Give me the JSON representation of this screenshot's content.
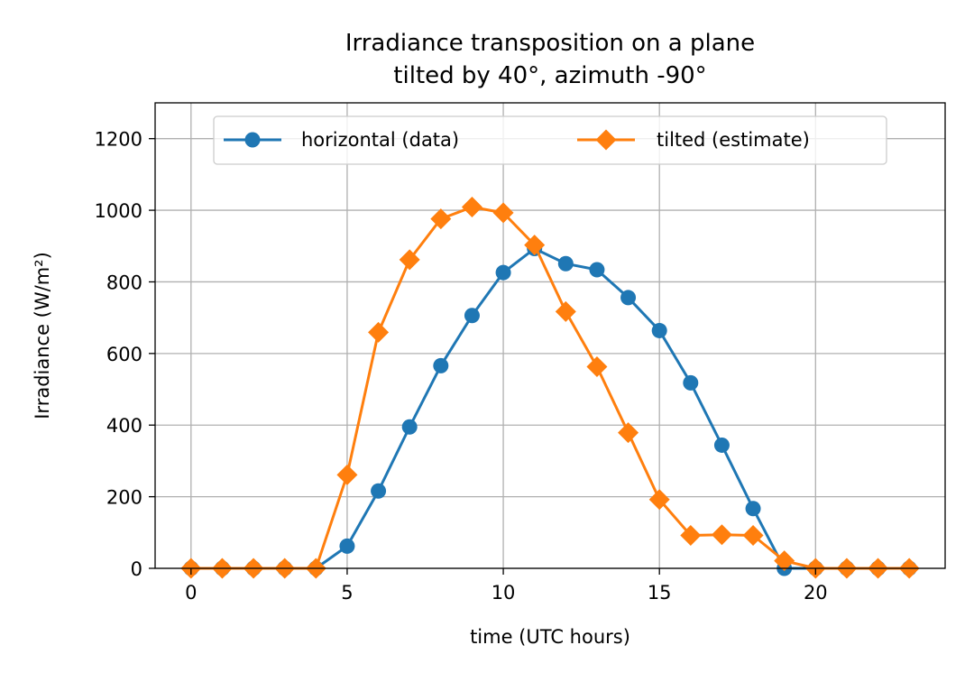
{
  "chart_data": {
    "type": "line",
    "title": "Irradiance transposition on a plane\ntilted by 40°, azimuth -90°",
    "xlabel": "time (UTC hours)",
    "ylabel": "Irradiance (W/m²)",
    "xlim": [
      -1.15,
      24.15
    ],
    "ylim": [
      0,
      1300
    ],
    "xticks": [
      0,
      5,
      10,
      15,
      20
    ],
    "yticks": [
      0,
      200,
      400,
      600,
      800,
      1000,
      1200
    ],
    "grid": true,
    "legend_position": "upper-center",
    "x": [
      0,
      1,
      2,
      3,
      4,
      5,
      6,
      7,
      8,
      9,
      10,
      11,
      12,
      13,
      14,
      15,
      16,
      17,
      18,
      19,
      20,
      21,
      22,
      23
    ],
    "series": [
      {
        "name": "horizontal (data)",
        "color": "#1f77b4",
        "marker": "circle",
        "values": [
          0,
          0,
          0,
          0,
          0,
          62,
          216,
          395,
          566,
          706,
          826,
          893,
          851,
          834,
          756,
          664,
          518,
          344,
          167,
          0,
          0,
          0,
          0,
          0
        ]
      },
      {
        "name": "tilted (estimate)",
        "color": "#ff7f0e",
        "marker": "diamond",
        "values": [
          0,
          0,
          0,
          0,
          0,
          261,
          659,
          862,
          976,
          1009,
          993,
          903,
          717,
          563,
          379,
          192,
          92,
          94,
          92,
          21,
          0,
          0,
          0,
          0
        ]
      }
    ]
  }
}
